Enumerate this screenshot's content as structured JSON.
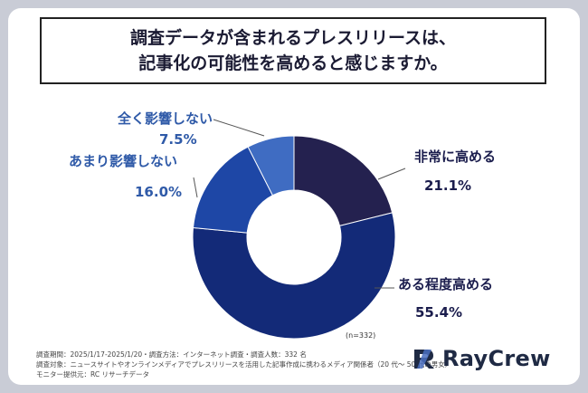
{
  "title": {
    "line1": "調査データが含まれるプレスリリースは、",
    "line2": "記事化の可能性を高めると感じますか。"
  },
  "chart_data": {
    "type": "pie",
    "donut": true,
    "n_label": "(n=332)",
    "slices": [
      {
        "label": "非常に高める",
        "value": 21.1,
        "value_label": "21.1%",
        "color": "#24214f"
      },
      {
        "label": "ある程度高める",
        "value": 55.4,
        "value_label": "55.4%",
        "color": "#132a78"
      },
      {
        "label": "あまり影響しない",
        "value": 16.0,
        "value_label": "16.0%",
        "color": "#1e47a6"
      },
      {
        "label": "全く影響しない",
        "value": 7.5,
        "value_label": "7.5%",
        "color": "#3f6cc2"
      }
    ]
  },
  "footer": {
    "line1": "調査期間：2025/1/17-2025/1/20・調査方法：インターネット調査・調査人数：332 名",
    "line2": "調査対象：ニュースサイトやオンラインメディアでプレスリリースを活用した記事作成に携わるメディア関係者（20 代〜 50 代の男女）",
    "line3": "モニター提供元：RC リサーチデータ"
  },
  "logo": {
    "text": "RayCrew"
  }
}
